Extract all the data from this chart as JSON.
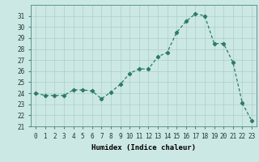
{
  "x": [
    0,
    1,
    2,
    3,
    4,
    5,
    6,
    7,
    8,
    9,
    10,
    11,
    12,
    13,
    14,
    15,
    16,
    17,
    18,
    19,
    20,
    21,
    22,
    23
  ],
  "y": [
    24.0,
    23.8,
    23.8,
    23.8,
    24.3,
    24.3,
    24.2,
    23.5,
    24.1,
    24.8,
    25.8,
    26.2,
    26.2,
    27.3,
    27.7,
    29.5,
    30.5,
    31.2,
    31.0,
    28.5,
    28.5,
    26.8,
    23.1,
    21.5
  ],
  "xlabel": "Humidex (Indice chaleur)",
  "xlim": [
    -0.5,
    23.5
  ],
  "ylim": [
    21,
    32
  ],
  "yticks": [
    21,
    22,
    23,
    24,
    25,
    26,
    27,
    28,
    29,
    30,
    31
  ],
  "xticks": [
    0,
    1,
    2,
    3,
    4,
    5,
    6,
    7,
    8,
    9,
    10,
    11,
    12,
    13,
    14,
    15,
    16,
    17,
    18,
    19,
    20,
    21,
    22,
    23
  ],
  "line_color": "#2d7a6a",
  "bg_color": "#cce8e4",
  "grid_color": "#aacfcb",
  "label_fontsize": 6.5,
  "tick_fontsize": 5.5
}
